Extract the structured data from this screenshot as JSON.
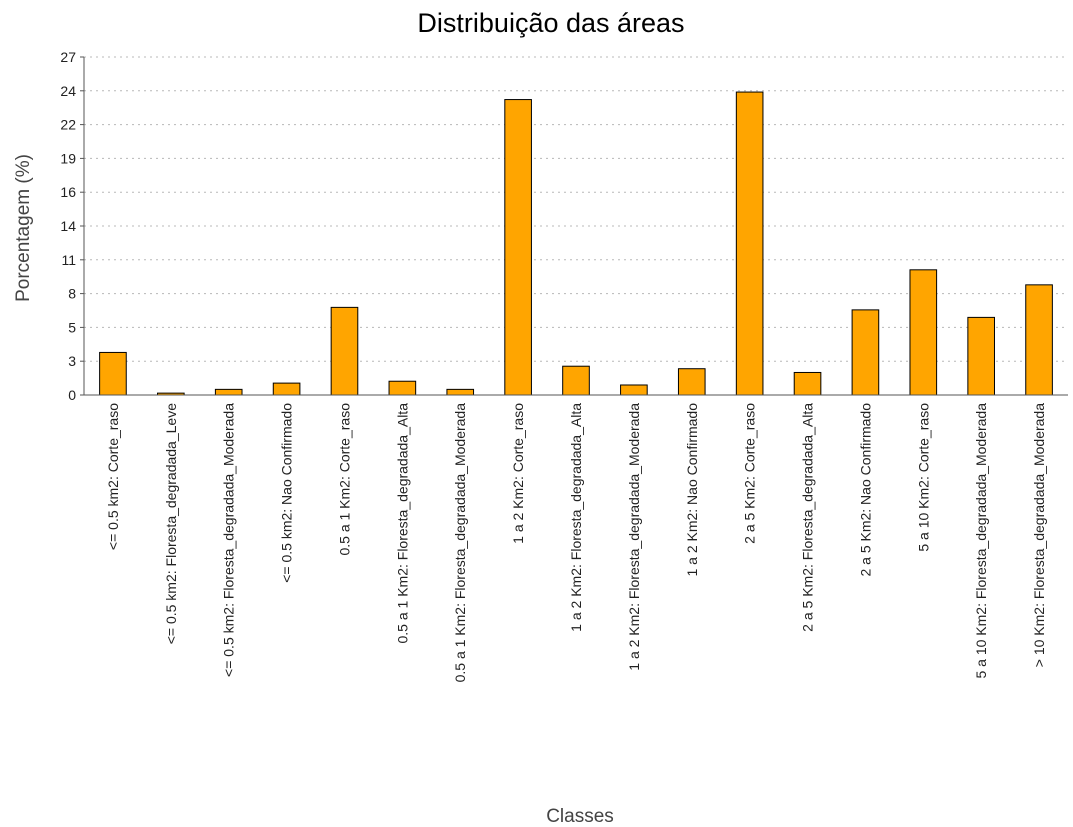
{
  "chart_data": {
    "type": "bar",
    "title": "Distribuição das áreas",
    "xlabel": "Classes",
    "ylabel": "Porcentagem (%)",
    "ylim": [
      0,
      27
    ],
    "yticks": [
      "0",
      "3",
      "5",
      "8",
      "11",
      "14",
      "16",
      "19",
      "22",
      "24",
      "27"
    ],
    "ytick_values": [
      0,
      2.7,
      5.4,
      8.1,
      10.8,
      13.5,
      16.2,
      18.9,
      21.6,
      24.3,
      27
    ],
    "grid": true,
    "bar_color": "#ffa500",
    "categories": [
      "<= 0.5 km2: Corte_raso",
      "<= 0.5 km2: Floresta_degradada_Leve",
      "<= 0.5 km2: Floresta_degradada_Moderada",
      "<= 0.5 km2: Nao Confirmado",
      "0.5 a 1 Km2: Corte_raso",
      "0.5 a 1 Km2: Floresta_degradada_Alta",
      "0.5 a 1 Km2: Floresta_degradada_Moderada",
      "1 a 2 Km2: Corte_raso",
      "1 a 2 Km2: Floresta_degradada_Alta",
      "1 a 2 Km2: Floresta_degradada_Moderada",
      "1 a 2 Km2: Nao Confirmado",
      "2 a 5 Km2: Corte_raso",
      "2 a 5 Km2: Floresta_degradada_Alta",
      "2 a 5 Km2: Nao Confirmado",
      "5 a 10 Km2: Corte_raso",
      "5 a 10 Km2: Floresta_degradada_Moderada",
      "> 10 Km2: Floresta_degradada_Moderada"
    ],
    "values": [
      3.4,
      0.15,
      0.45,
      0.95,
      7.0,
      1.1,
      0.45,
      23.6,
      2.3,
      0.8,
      2.1,
      24.2,
      1.8,
      6.8,
      10.0,
      6.2,
      8.8
    ]
  }
}
